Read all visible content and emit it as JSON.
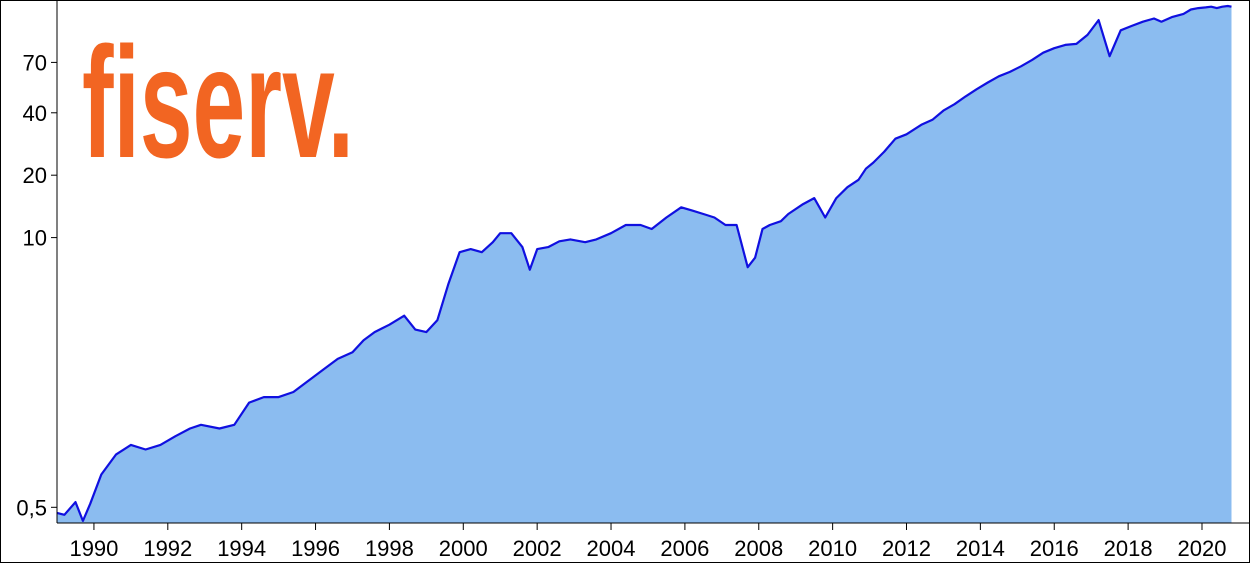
{
  "logo": {
    "text": "fiserv.",
    "color": "#f26522"
  },
  "colors": {
    "line": "#1010e0",
    "fill": "#8bbcf0",
    "axis": "#000000",
    "background": "#ffffff"
  },
  "chart_data": {
    "type": "area",
    "title": "",
    "xlabel": "",
    "ylabel": "",
    "y_scale": "log",
    "xlim": [
      1989.0,
      2021.3
    ],
    "ylim": [
      0.42,
      140
    ],
    "grid": false,
    "legend": "none",
    "y_ticks": [
      {
        "value": 0.5,
        "label": "0,5"
      },
      {
        "value": 10,
        "label": "10"
      },
      {
        "value": 20,
        "label": "20"
      },
      {
        "value": 40,
        "label": "40"
      },
      {
        "value": 70,
        "label": "70"
      }
    ],
    "x_ticks": [
      {
        "value": 1990,
        "label": "1990"
      },
      {
        "value": 1992,
        "label": "1992"
      },
      {
        "value": 1994,
        "label": "1994"
      },
      {
        "value": 1996,
        "label": "1996"
      },
      {
        "value": 1998,
        "label": "1998"
      },
      {
        "value": 2000,
        "label": "2000"
      },
      {
        "value": 2002,
        "label": "2002"
      },
      {
        "value": 2004,
        "label": "2004"
      },
      {
        "value": 2006,
        "label": "2006"
      },
      {
        "value": 2008,
        "label": "2008"
      },
      {
        "value": 2010,
        "label": "2010"
      },
      {
        "value": 2012,
        "label": "2012"
      },
      {
        "value": 2014,
        "label": "2014"
      },
      {
        "value": 2016,
        "label": "2016"
      },
      {
        "value": 2018,
        "label": "2018"
      },
      {
        "value": 2020,
        "label": "2020"
      }
    ],
    "series": [
      {
        "x": [
          1989.0,
          1989.2,
          1989.5,
          1989.7,
          1989.9,
          1990.2,
          1990.6,
          1991.0,
          1991.4,
          1991.8,
          1992.2,
          1992.6,
          1992.9,
          1993.4,
          1993.8,
          1994.2,
          1994.6,
          1995.0,
          1995.4,
          1995.9,
          1996.2,
          1996.6,
          1997.0,
          1997.3,
          1997.6,
          1998.0,
          1998.4,
          1998.7,
          1999.0,
          1999.3,
          1999.6,
          1999.9,
          2000.2,
          2000.5,
          2000.8,
          2001.0,
          2001.3,
          2001.6,
          2001.8,
          2002.0,
          2002.3,
          2002.6,
          2002.9,
          2003.3,
          2003.6,
          2004.0,
          2004.4,
          2004.8,
          2005.1,
          2005.5,
          2005.9,
          2006.2,
          2006.5,
          2006.8,
          2007.1,
          2007.4,
          2007.7,
          2007.9,
          2008.1,
          2008.3,
          2008.6,
          2008.8,
          2009.2,
          2009.5,
          2009.8,
          2010.1,
          2010.4,
          2010.7,
          2010.9,
          2011.1,
          2011.4,
          2011.7,
          2012.0,
          2012.4,
          2012.7,
          2013.0,
          2013.3,
          2013.6,
          2013.9,
          2014.2,
          2014.5,
          2014.8,
          2015.1,
          2015.4,
          2015.7,
          2016.0,
          2016.3,
          2016.6,
          2016.9,
          2017.2,
          2017.5,
          2017.8,
          2018.1,
          2018.4,
          2018.7,
          2018.9,
          2019.2,
          2019.5,
          2019.7,
          2019.9,
          2020.1,
          2020.25,
          2020.4,
          2020.55,
          2020.7,
          2020.8
        ],
        "values": [
          0.47,
          0.46,
          0.53,
          0.43,
          0.52,
          0.72,
          0.9,
          1.0,
          0.95,
          1.0,
          1.1,
          1.2,
          1.25,
          1.2,
          1.25,
          1.6,
          1.7,
          1.7,
          1.8,
          2.1,
          2.3,
          2.6,
          2.8,
          3.2,
          3.5,
          3.8,
          4.2,
          3.6,
          3.5,
          4.0,
          6.0,
          8.5,
          8.8,
          8.5,
          9.5,
          10.5,
          10.5,
          9.0,
          7.0,
          8.8,
          9.0,
          9.6,
          9.8,
          9.5,
          9.8,
          10.5,
          11.5,
          11.5,
          11.0,
          12.5,
          14.0,
          13.5,
          13.0,
          12.5,
          11.5,
          11.5,
          7.2,
          8.0,
          11.0,
          11.5,
          12.0,
          13.0,
          14.5,
          15.5,
          12.5,
          15.5,
          17.5,
          19.0,
          21.5,
          23.0,
          26.0,
          30.0,
          31.5,
          35.0,
          37.0,
          41.0,
          44.0,
          48.0,
          52.0,
          56.0,
          60.0,
          63.0,
          67.0,
          72.0,
          78.0,
          82.0,
          85.0,
          86.0,
          95.0,
          112.0,
          75.0,
          100.0,
          105.0,
          110.0,
          114.0,
          110.0,
          116.0,
          120.0,
          126.0,
          128.0,
          129.0,
          130.0,
          128.0,
          130.0,
          131.0,
          130.0
        ]
      }
    ]
  }
}
